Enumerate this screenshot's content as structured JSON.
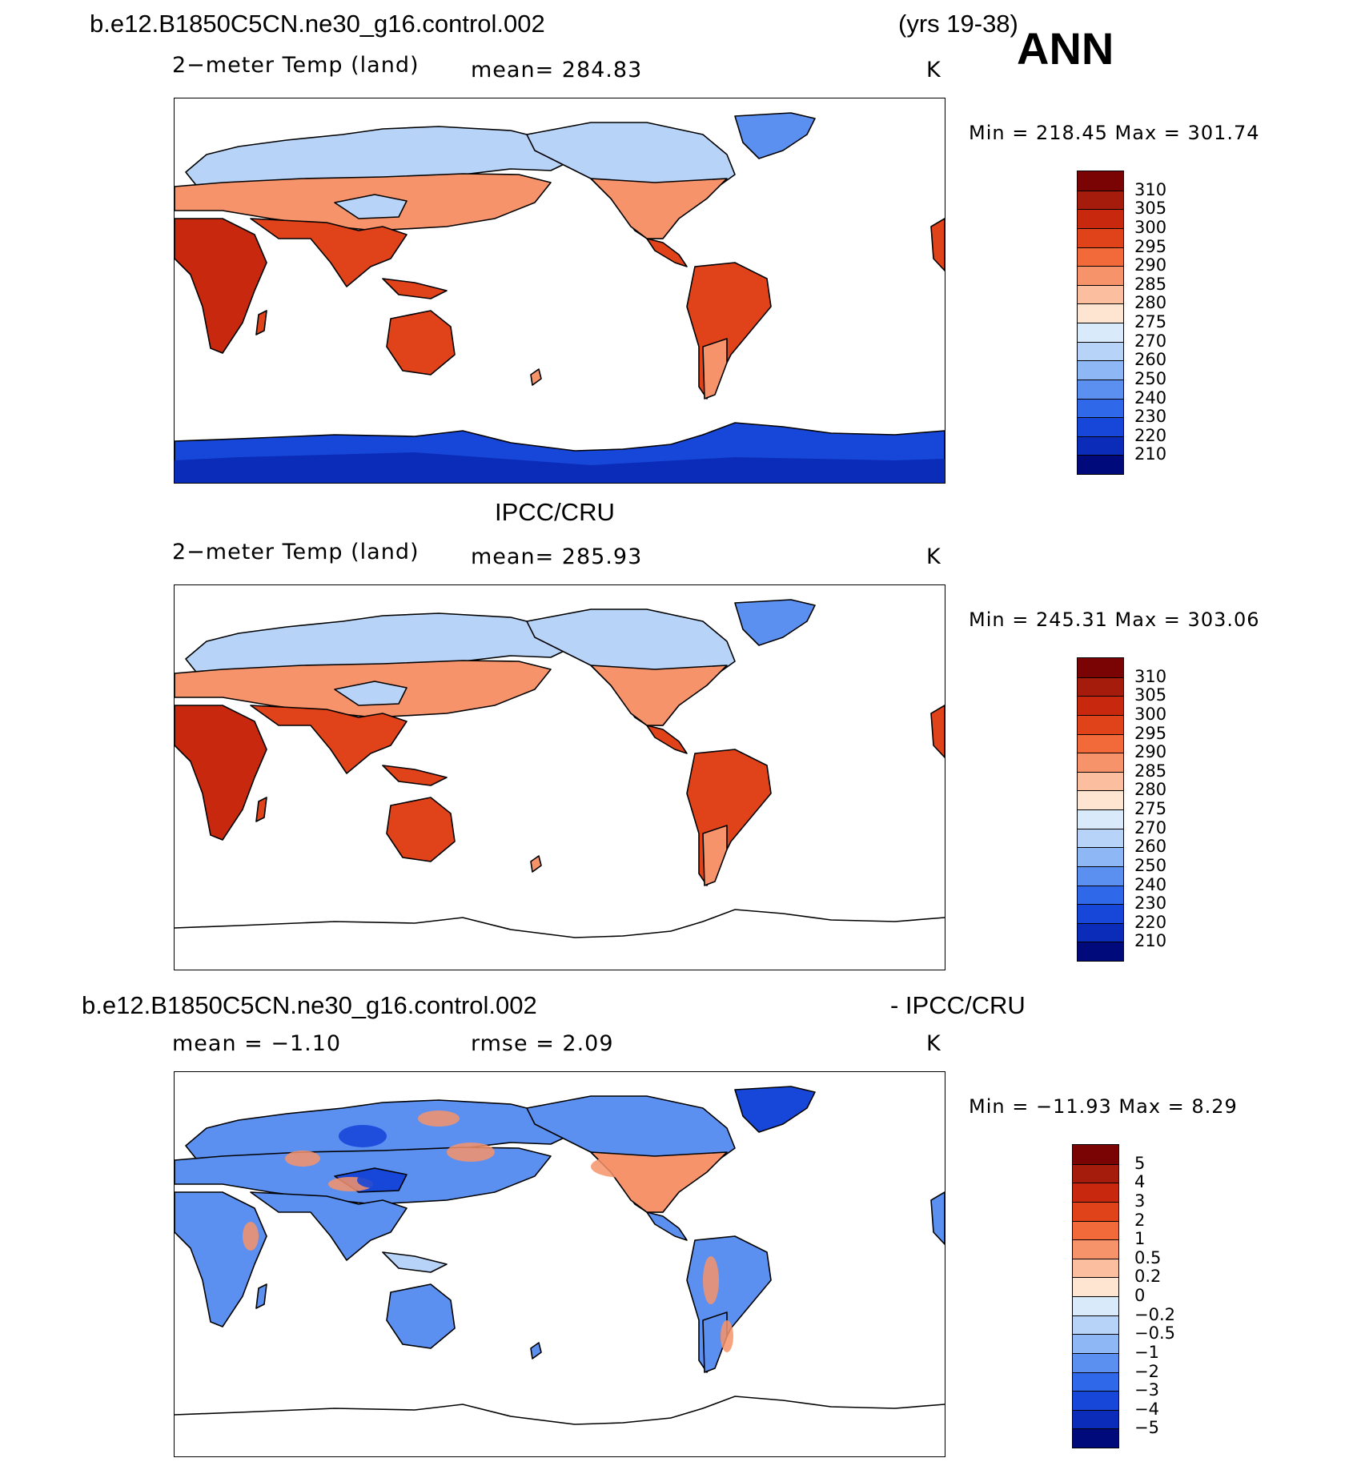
{
  "header": {
    "case_name": "b.e12.B1850C5CN.ne30_g16.control.002",
    "years": "(yrs 19-38)",
    "season": "ANN"
  },
  "panels": [
    {
      "title": "",
      "variable": "2−meter Temp (land)",
      "stat": "mean=  284.83",
      "units": "K",
      "minmax": "Min  =  218.45  Max  =  301.74",
      "colorbar": {
        "labels": [
          "310",
          "305",
          "300",
          "295",
          "290",
          "285",
          "280",
          "275",
          "270",
          "260",
          "250",
          "240",
          "230",
          "220",
          "210"
        ],
        "colors": [
          "#7a0403",
          "#a51c0c",
          "#c8280e",
          "#e0421a",
          "#f26a3a",
          "#f7936a",
          "#fbbf9f",
          "#fde5d1",
          "#d9eafb",
          "#b7d4f8",
          "#8eb8f5",
          "#5b8ff0",
          "#2f68e8",
          "#1747d8",
          "#0b2cb8",
          "#000a7a"
        ]
      },
      "antarctica_shaded": true,
      "diff": false
    },
    {
      "title": "IPCC/CRU",
      "variable": "2−meter Temp (land)",
      "stat": "mean=  285.93",
      "units": "K",
      "minmax": "Min  =  245.31  Max  =  303.06",
      "colorbar": {
        "labels": [
          "310",
          "305",
          "300",
          "295",
          "290",
          "285",
          "280",
          "275",
          "270",
          "260",
          "250",
          "240",
          "230",
          "220",
          "210"
        ],
        "colors": [
          "#7a0403",
          "#a51c0c",
          "#c8280e",
          "#e0421a",
          "#f26a3a",
          "#f7936a",
          "#fbbf9f",
          "#fde5d1",
          "#d9eafb",
          "#b7d4f8",
          "#8eb8f5",
          "#5b8ff0",
          "#2f68e8",
          "#1747d8",
          "#0b2cb8",
          "#000a7a"
        ]
      },
      "antarctica_shaded": false,
      "diff": false
    },
    {
      "title_left": "b.e12.B1850C5CN.ne30_g16.control.002",
      "title_right": "- IPCC/CRU",
      "variable": "mean  =    −1.10",
      "stat": "rmse  =      2.09",
      "units": "K",
      "minmax": "Min  =  −11.93  Max  =      8.29",
      "colorbar": {
        "labels": [
          "5",
          "4",
          "3",
          "2",
          "1",
          "0.5",
          "0.2",
          "0",
          "−0.2",
          "−0.5",
          "−1",
          "−2",
          "−3",
          "−4",
          "−5"
        ],
        "colors": [
          "#7a0403",
          "#a51c0c",
          "#c8280e",
          "#e0421a",
          "#f26a3a",
          "#f7936a",
          "#fbbf9f",
          "#fde5d1",
          "#d9eafb",
          "#b7d4f8",
          "#8eb8f5",
          "#5b8ff0",
          "#2f68e8",
          "#1747d8",
          "#0b2cb8",
          "#000a7a"
        ]
      },
      "antarctica_shaded": false,
      "diff": true
    }
  ],
  "colors": {
    "warm": "#e0421a",
    "hot": "#c8280e",
    "mild": "#f7936a",
    "cool": "#b7d4f8",
    "cold": "#5b8ff0",
    "frozen": "#1747d8"
  }
}
